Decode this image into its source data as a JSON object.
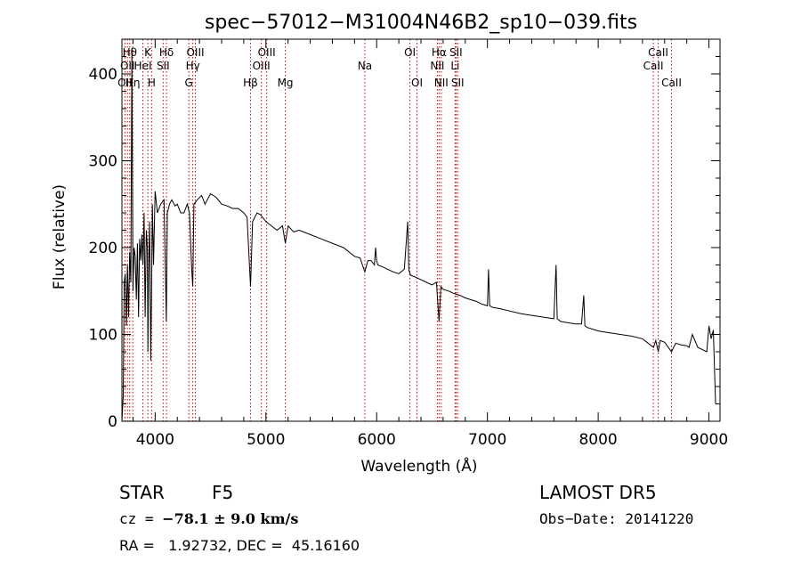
{
  "chart_data": {
    "type": "line",
    "title": "spec−57012−M31004N46B2_sp10−039.fits",
    "xlabel": "Wavelength (Å)",
    "ylabel": "Flux (relative)",
    "xlim": [
      3700,
      9100
    ],
    "ylim": [
      0,
      440
    ],
    "xticks": [
      4000,
      5000,
      6000,
      7000,
      8000,
      9000
    ],
    "yticks": [
      0,
      100,
      200,
      300,
      400
    ],
    "grid": false,
    "line_color": "#000000",
    "marker_color": "#cc0000",
    "series": [
      {
        "x": [
          3700,
          3712,
          3720,
          3730,
          3740,
          3750,
          3760,
          3770,
          3780,
          3790,
          3800,
          3810,
          3820,
          3830,
          3840,
          3850,
          3860,
          3870,
          3880,
          3890,
          3900,
          3910,
          3920,
          3930,
          3935,
          3940,
          3950,
          3960,
          3968,
          3975,
          3985,
          4000,
          4020,
          4050,
          4080,
          4101,
          4110,
          4130,
          4150,
          4180,
          4200,
          4230,
          4260,
          4290,
          4310,
          4330,
          4340,
          4350,
          4380,
          4420,
          4450,
          4500,
          4550,
          4600,
          4650,
          4700,
          4750,
          4800,
          4830,
          4861,
          4880,
          4920,
          4950,
          5000,
          5050,
          5100,
          5150,
          5175,
          5200,
          5250,
          5300,
          5400,
          5500,
          5600,
          5700,
          5800,
          5850,
          5893,
          5920,
          5950,
          5980,
          5990,
          6000,
          6010,
          6050,
          6100,
          6150,
          6200,
          6250,
          6280,
          6290,
          6300,
          6310,
          6350,
          6400,
          6450,
          6500,
          6540,
          6563,
          6580,
          6600,
          6650,
          6700,
          6750,
          6800,
          6850,
          6900,
          6950,
          7000,
          7010,
          7020,
          7050,
          7100,
          7200,
          7300,
          7400,
          7500,
          7600,
          7620,
          7630,
          7640,
          7660,
          7700,
          7800,
          7850,
          7870,
          7880,
          7900,
          7950,
          8000,
          8100,
          8200,
          8300,
          8400,
          8450,
          8500,
          8520,
          8542,
          8560,
          8600,
          8662,
          8700,
          8750,
          8800,
          8820,
          8850,
          8900,
          8950,
          8980,
          9000,
          9020,
          9040,
          9060
        ],
        "y": [
          0,
          30,
          160,
          170,
          110,
          180,
          120,
          195,
          160,
          430,
          150,
          200,
          190,
          140,
          205,
          120,
          210,
          185,
          215,
          180,
          240,
          120,
          220,
          200,
          80,
          170,
          230,
          70,
          160,
          250,
          180,
          265,
          240,
          250,
          255,
          115,
          240,
          250,
          255,
          248,
          250,
          240,
          240,
          250,
          240,
          175,
          155,
          250,
          255,
          260,
          250,
          262,
          258,
          250,
          248,
          245,
          245,
          240,
          235,
          155,
          230,
          240,
          238,
          230,
          225,
          220,
          225,
          205,
          225,
          218,
          220,
          215,
          210,
          205,
          200,
          190,
          188,
          172,
          185,
          185,
          180,
          200,
          185,
          180,
          178,
          175,
          172,
          170,
          175,
          230,
          175,
          170,
          168,
          166,
          163,
          160,
          157,
          160,
          115,
          155,
          152,
          150,
          147,
          145,
          142,
          140,
          138,
          135,
          133,
          175,
          133,
          131,
          130,
          127,
          124,
          122,
          120,
          118,
          180,
          118,
          117,
          115,
          114,
          112,
          112,
          145,
          110,
          108,
          106,
          104,
          102,
          100,
          98,
          95,
          90,
          85,
          93,
          80,
          93,
          91,
          80,
          90,
          88,
          87,
          85,
          100,
          85,
          82,
          80,
          110,
          95,
          105,
          20
        ]
      }
    ],
    "spectral_lines": [
      {
        "wavelength": 3727,
        "label": "OII",
        "row": 3
      },
      {
        "wavelength": 3750,
        "label": "OII",
        "row": 2
      },
      {
        "wavelength": 3771,
        "label": "Hθ",
        "row": 1
      },
      {
        "wavelength": 3798,
        "label": "Hη",
        "row": 3
      },
      {
        "wavelength": 3889,
        "label": "HeI",
        "row": 2
      },
      {
        "wavelength": 3934,
        "label": "K",
        "row": 1
      },
      {
        "wavelength": 3968,
        "label": "H",
        "row": 3
      },
      {
        "wavelength": 4072,
        "label": "SII",
        "row": 2
      },
      {
        "wavelength": 4102,
        "label": "Hδ",
        "row": 1
      },
      {
        "wavelength": 4304,
        "label": "G",
        "row": 3
      },
      {
        "wavelength": 4340,
        "label": "Hγ",
        "row": 2
      },
      {
        "wavelength": 4363,
        "label": "OIII",
        "row": 1
      },
      {
        "wavelength": 4861,
        "label": "Hβ",
        "row": 3
      },
      {
        "wavelength": 4959,
        "label": "OIII",
        "row": 2
      },
      {
        "wavelength": 5007,
        "label": "OIII",
        "row": 1
      },
      {
        "wavelength": 5175,
        "label": "Mg",
        "row": 3
      },
      {
        "wavelength": 5893,
        "label": "Na",
        "row": 2
      },
      {
        "wavelength": 6300,
        "label": "OI",
        "row": 1
      },
      {
        "wavelength": 6364,
        "label": "OI",
        "row": 3
      },
      {
        "wavelength": 6548,
        "label": "NII",
        "row": 2
      },
      {
        "wavelength": 6563,
        "label": "Hα",
        "row": 1
      },
      {
        "wavelength": 6583,
        "label": "NII",
        "row": 3
      },
      {
        "wavelength": 6708,
        "label": "Li",
        "row": 2
      },
      {
        "wavelength": 6716,
        "label": "SII",
        "row": 1
      },
      {
        "wavelength": 6731,
        "label": "SII",
        "row": 3
      },
      {
        "wavelength": 8498,
        "label": "CaII",
        "row": 2
      },
      {
        "wavelength": 8542,
        "label": "CaII",
        "row": 1
      },
      {
        "wavelength": 8662,
        "label": "CaII",
        "row": 3
      }
    ]
  },
  "info": {
    "object_class": "STAR",
    "subclass": "F5",
    "survey": "LAMOST DR5",
    "cz_label": "cz = ",
    "cz_value": "−78.1 ± 9.0 km/s",
    "obs_date": "Obs−Date: 20141220",
    "coordinates": "RA =   1.92732, DEC =  45.16160"
  }
}
